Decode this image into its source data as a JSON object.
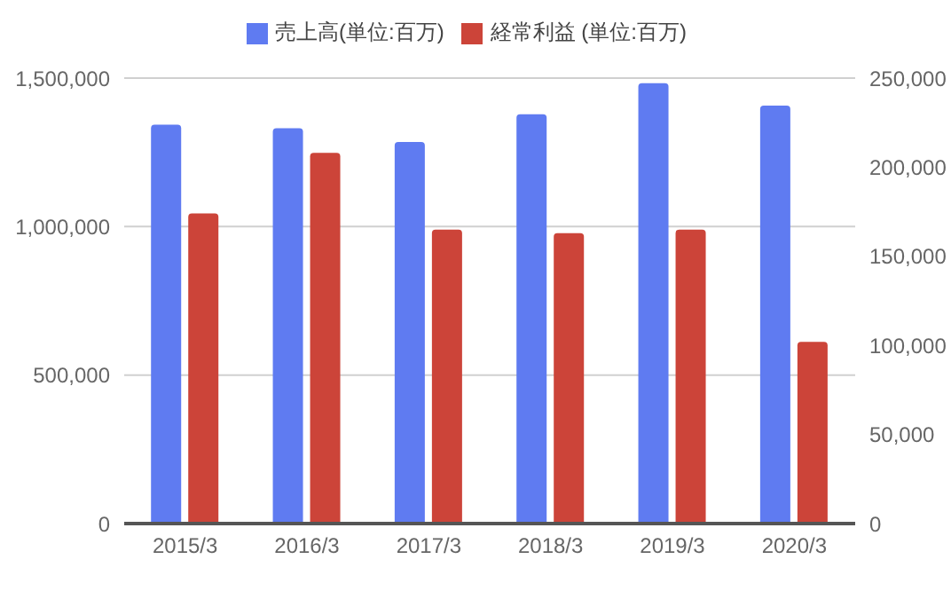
{
  "chart_data": {
    "type": "bar",
    "categories": [
      "2015/3",
      "2016/3",
      "2017/3",
      "2018/3",
      "2019/3",
      "2020/3"
    ],
    "series": [
      {
        "name": "売上高(単位:百万)",
        "color": "#5f7bf1",
        "values": [
          1343000,
          1331000,
          1285000,
          1378000,
          1483000,
          1407000
        ]
      },
      {
        "name": "経常利益 (単位:百万)",
        "color": "#cc4439",
        "axis": "y2",
        "values": [
          174000,
          208000,
          165000,
          163000,
          165000,
          102000
        ]
      }
    ],
    "ylim": [
      0,
      1500000
    ],
    "yticks": [
      0,
      {
        "value": 500000,
        "label": "500,000"
      },
      {
        "value": 1000000,
        "label": "1,000,000"
      },
      {
        "value": 1500000,
        "label": "1,500,000"
      }
    ],
    "y2lim": [
      0,
      250000
    ],
    "y2ticks": [
      0,
      {
        "value": 50000,
        "label": "50,000"
      },
      {
        "value": 100000,
        "label": "100,000"
      },
      {
        "value": 150000,
        "label": "150,000"
      },
      {
        "value": 200000,
        "label": "200,000"
      },
      {
        "value": 250000,
        "label": "250,000"
      }
    ],
    "grid": "y",
    "legend": "top"
  }
}
